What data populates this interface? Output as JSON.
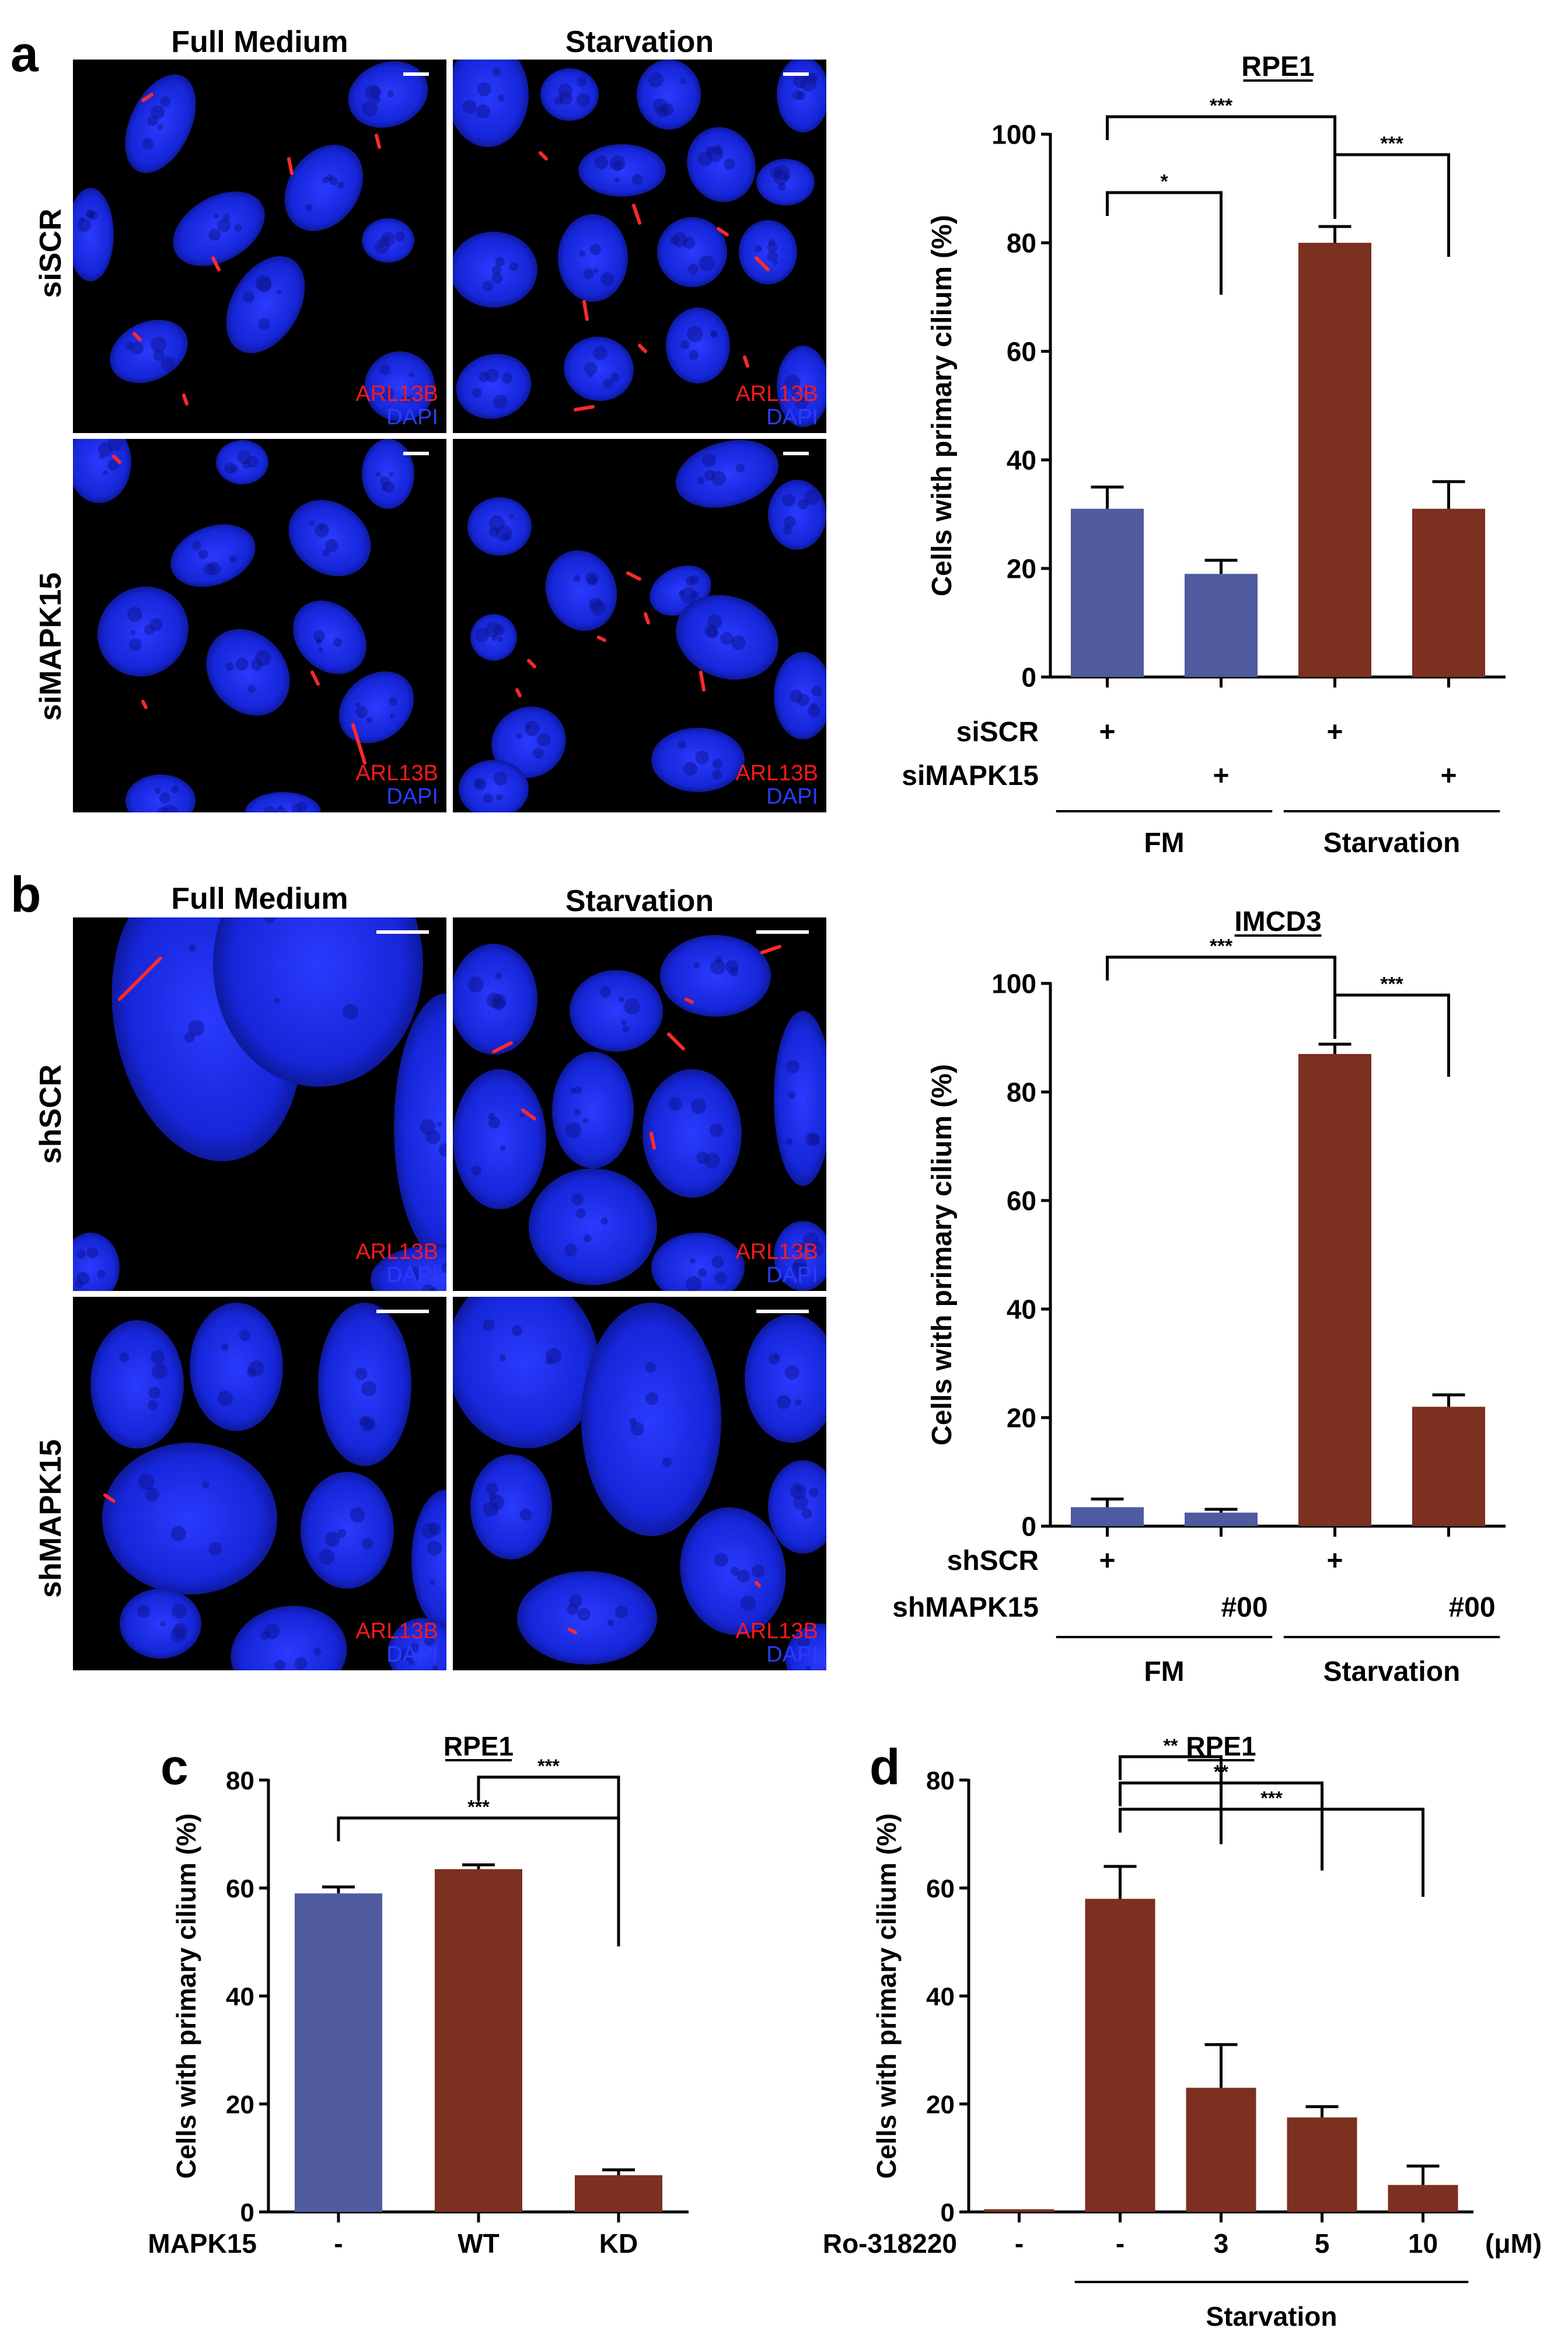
{
  "panels": {
    "a": {
      "letter": "a",
      "col_headers": [
        "Full Medium",
        "Starvation"
      ],
      "row_headers": [
        "siSCR",
        "siMAPK15"
      ],
      "stain_red": "ARL13B",
      "stain_blue": "DAPI"
    },
    "b": {
      "letter": "b",
      "col_headers": [
        "Full Medium",
        "Starvation"
      ],
      "row_headers": [
        "shSCR",
        "shMAPK15"
      ],
      "stain_red": "ARL13B",
      "stain_blue": "DAPI"
    },
    "c": {
      "letter": "c"
    },
    "d": {
      "letter": "d"
    }
  },
  "colors": {
    "blue_bar": "#4f5b9e",
    "brown_bar": "#7b3020",
    "nucleus": "#1f2ee0",
    "cilium": "#ff2a2a"
  },
  "chart_data": [
    {
      "id": "a",
      "type": "bar",
      "title": "RPE1",
      "ylabel": "Cells with primary cilium (%)",
      "ylim": [
        0,
        100
      ],
      "yticks": [
        0,
        20,
        40,
        60,
        80,
        100
      ],
      "categories": [
        "FM siSCR",
        "FM siMAPK15",
        "Starvation siSCR",
        "Starvation siMAPK15"
      ],
      "values": [
        31,
        19,
        80,
        31
      ],
      "errors": [
        4,
        2.5,
        3,
        5
      ],
      "bar_colors": [
        "blue",
        "blue",
        "brown",
        "brown"
      ],
      "condition_rows": [
        {
          "label": "siSCR",
          "marks": [
            "+",
            "",
            "+",
            ""
          ]
        },
        {
          "label": "siMAPK15",
          "marks": [
            "",
            "+",
            "",
            "+"
          ]
        }
      ],
      "groups": [
        {
          "label": "FM",
          "span": [
            0,
            1
          ]
        },
        {
          "label": "Starvation",
          "span": [
            2,
            3
          ]
        }
      ],
      "significance": [
        {
          "from": 0,
          "to": 2,
          "label": "***"
        },
        {
          "from": 2,
          "to": 3,
          "label": "***"
        },
        {
          "from": 0,
          "to": 1,
          "label": "*"
        }
      ]
    },
    {
      "id": "b",
      "type": "bar",
      "title": "IMCD3",
      "ylabel": "Cells with primary cilium (%)",
      "ylim": [
        0,
        100
      ],
      "yticks": [
        0,
        20,
        40,
        60,
        80,
        100
      ],
      "categories": [
        "FM shSCR",
        "FM shMAPK15",
        "Starvation shSCR",
        "Starvation shMAPK15"
      ],
      "values": [
        3.5,
        2.5,
        87,
        22
      ],
      "errors": [
        1.5,
        0.6,
        1.8,
        2.2
      ],
      "bar_colors": [
        "blue",
        "blue",
        "brown",
        "brown"
      ],
      "condition_rows": [
        {
          "label": "shSCR",
          "marks": [
            "+",
            "",
            "+",
            ""
          ]
        },
        {
          "label": "shMAPK15",
          "marks": [
            "",
            "#00",
            "",
            "#00"
          ]
        }
      ],
      "groups": [
        {
          "label": "FM",
          "span": [
            0,
            1
          ]
        },
        {
          "label": "Starvation",
          "span": [
            2,
            3
          ]
        }
      ],
      "significance": [
        {
          "from": 0,
          "to": 2,
          "label": "***"
        },
        {
          "from": 2,
          "to": 3,
          "label": "***"
        }
      ]
    },
    {
      "id": "c",
      "type": "bar",
      "title": "RPE1",
      "ylabel": "Cells with primary cilium (%)",
      "ylim": [
        0,
        80
      ],
      "yticks": [
        0,
        20,
        40,
        60,
        80
      ],
      "xlabel_row": "MAPK15",
      "categories": [
        "-",
        "WT",
        "KD"
      ],
      "values": [
        59,
        63.5,
        6.8
      ],
      "errors": [
        1.2,
        0.8,
        1.0
      ],
      "bar_colors": [
        "blue",
        "brown",
        "brown"
      ],
      "significance": [
        {
          "from": 1,
          "to": 2,
          "label": "***"
        },
        {
          "from": 0,
          "to": 2,
          "label": "***"
        }
      ]
    },
    {
      "id": "d",
      "type": "bar",
      "title": "RPE1",
      "ylabel": "Cells with primary cilium (%)",
      "ylim": [
        0,
        80
      ],
      "yticks": [
        0,
        20,
        40,
        60,
        80
      ],
      "xlabel_row": "Ro-318220",
      "unit": "(μM)",
      "categories": [
        "-",
        "-",
        "3",
        "5",
        "10"
      ],
      "values": [
        0.5,
        58,
        23,
        17.5,
        5
      ],
      "errors": [
        0,
        6,
        8,
        2,
        3.5
      ],
      "bar_colors": [
        "brown",
        "brown",
        "brown",
        "brown",
        "brown"
      ],
      "groups": [
        {
          "label": "Starvation",
          "span": [
            1,
            4
          ]
        }
      ],
      "significance": [
        {
          "from": 1,
          "to": 2,
          "label": "**"
        },
        {
          "from": 1,
          "to": 3,
          "label": "**"
        },
        {
          "from": 1,
          "to": 4,
          "label": "***"
        }
      ]
    }
  ]
}
